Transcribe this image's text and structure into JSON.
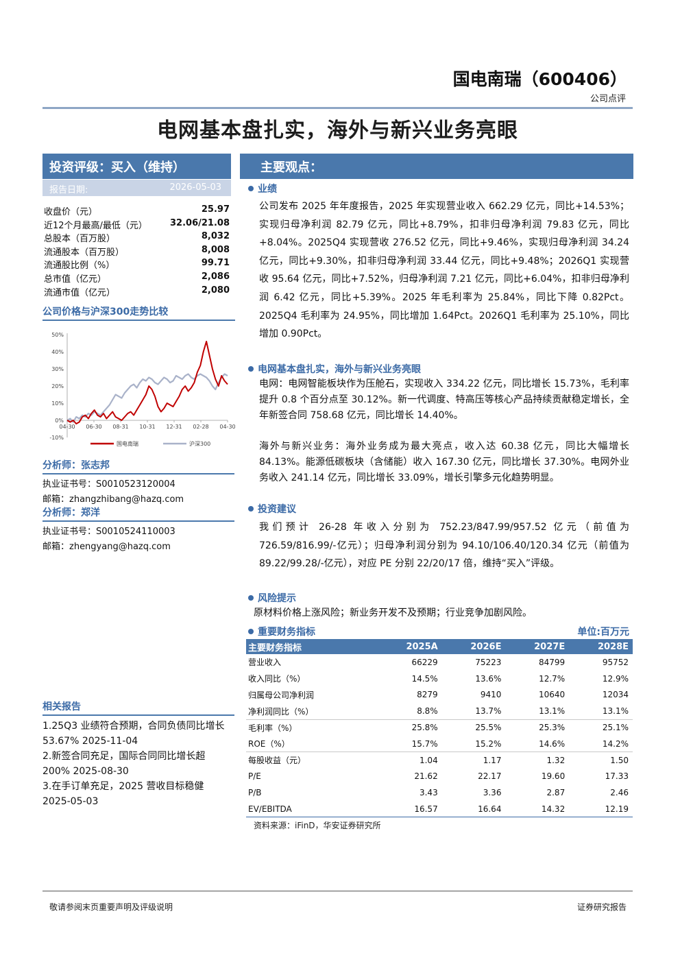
{
  "header": {
    "company": "国电南瑞（600406）",
    "report_type": "公司点评"
  },
  "headline": "电网基本盘扎实，海外与新兴业务亮眼",
  "rating": {
    "title": "投资评级：买入（维持）",
    "date_label": "报告日期:",
    "date_value": "2026-05-03"
  },
  "stats": [
    {
      "label": "收盘价（元）",
      "value": "25.97"
    },
    {
      "label": "近12个月最高/最低（元）",
      "value": "32.06/21.08"
    },
    {
      "label": "总股本（百万股）",
      "value": "8,032"
    },
    {
      "label": "流通股本（百万股）",
      "value": "8,008"
    },
    {
      "label": "流通股比例（%）",
      "value": "99.71"
    },
    {
      "label": "总市值（亿元）",
      "value": "2,086"
    },
    {
      "label": "流通市值（亿元）",
      "value": "2,080"
    }
  ],
  "chart_title": "公司价格与沪深300走势比较",
  "chart_data": {
    "type": "line",
    "y_ticks": [
      "50%",
      "40%",
      "30%",
      "20%",
      "10%",
      "0%",
      "-10%"
    ],
    "ylim": [
      -10,
      50
    ],
    "x_ticks": [
      "04-30",
      "06-30",
      "08-31",
      "10-31",
      "12-31",
      "02-28",
      "04-30"
    ],
    "series": [
      {
        "name": "国电南瑞",
        "color": "#c00000",
        "values": [
          0,
          -1,
          0,
          -2,
          -1,
          2,
          3,
          1,
          4,
          6,
          3,
          2,
          4,
          1,
          3,
          5,
          2,
          1,
          0,
          2,
          4,
          5,
          3,
          6,
          9,
          12,
          15,
          20,
          18,
          14,
          8,
          5,
          7,
          10,
          9,
          8,
          11,
          14,
          18,
          20,
          17,
          19,
          22,
          28,
          32,
          40,
          46,
          38,
          30,
          24,
          20,
          26,
          23,
          21
        ]
      },
      {
        "name": "沪深300",
        "color": "#a9b2c9",
        "values": [
          0,
          1,
          -1,
          2,
          1,
          3,
          2,
          4,
          3,
          5,
          4,
          3,
          5,
          7,
          9,
          12,
          15,
          14,
          13,
          16,
          18,
          20,
          21,
          19,
          22,
          24,
          23,
          25,
          24,
          22,
          21,
          23,
          25,
          24,
          22,
          23,
          26,
          25,
          24,
          26,
          27,
          25,
          24,
          26,
          27,
          26,
          25,
          23,
          20,
          18,
          22,
          25,
          27,
          26
        ]
      }
    ],
    "legend": [
      "国电南瑞",
      "沪深300"
    ]
  },
  "analysts": [
    {
      "title": "分析师：张志邦",
      "cert": "执业证书号：S0010523120004",
      "email": "邮箱：zhangzhibang@hazq.com"
    },
    {
      "title": "分析师：郑洋",
      "cert": "执业证书号：S0010524110003",
      "email": "邮箱：zhengyang@hazq.com"
    }
  ],
  "related": {
    "title": "相关报告",
    "items": [
      "1.25Q3 业绩符合预期，合同负债同比增长 53.67% 2025-11-04",
      "2.新签合同充足，国际合同同比增长超 200% 2025-08-30",
      "3.在手订单充足，2025 营收目标稳健 2025-05-03"
    ]
  },
  "views": {
    "title": "主要观点：",
    "sections": [
      {
        "head": "业绩",
        "paras": [
          "公司发布 2025 年年度报告，2025 年实现营业收入 662.29 亿元，同比+14.53%；实现归母净利润 82.79 亿元，同比+8.79%，扣非归母净利润 79.83 亿元，同比+8.04%。2025Q4 实现营收 276.52 亿元，同比+9.46%，实现归母净利润 34.24 亿元，同比+9.30%，扣非归母净利润 33.44 亿元，同比+9.48%；2026Q1 实现营收 95.64 亿元，同比+7.52%，归母净利润 7.21 亿元，同比+6.04%，扣非归母净利润 6.42 亿元，同比+5.39%。2025 年毛利率为 25.84%，同比下降 0.82Pct。2025Q4 毛利率为 24.95%，同比增加 1.64Pct。2026Q1 毛利率为 25.10%，同比增加 0.90Pct。"
        ]
      },
      {
        "head": "电网基本盘扎实，海外与新兴业务亮眼",
        "paras": [
          "电网：电网智能板块作为压舱石，实现收入 334.22 亿元，同比增长 15.73%，毛利率提升 0.8 个百分点至 30.12%。新一代调度、特高压等核心产品持续贡献稳定增长，全年新签合同 758.68 亿元，同比增长 14.40%。",
          "海外与新兴业务：海外业务成为最大亮点，收入达 60.38 亿元，同比大幅增长 84.13%。能源低碳板块（含储能）收入 167.30 亿元，同比增长 37.30%。电网外业务收入 241.14 亿元，同比增长 33.09%，增长引擎多元化趋势明显。"
        ]
      },
      {
        "head": "投资建议",
        "paras": [
          "我们预计 26-28 年收入分别为 752.23/847.99/957.52 亿元（前值为 726.59/816.99/-亿元）；归母净利润分别为 94.10/106.40/120.34 亿元（前值为 89.22/99.28/-亿元），对应 PE 分别 22/20/17 倍，维持“买入”评级。"
        ]
      },
      {
        "head": "风险提示",
        "paras": [
          "原材料价格上涨风险；新业务开发不及预期；行业竞争加剧风险。"
        ]
      }
    ]
  },
  "fin": {
    "head": "重要财务指标",
    "unit": "单位:百万元",
    "columns": [
      "主要财务指标",
      "2025A",
      "2026E",
      "2027E",
      "2028E"
    ],
    "rows": [
      [
        "营业收入",
        "66229",
        "75223",
        "84799",
        "95752"
      ],
      [
        "收入同比（%）",
        "14.5%",
        "13.6%",
        "12.7%",
        "12.9%"
      ],
      [
        "归属母公司净利润",
        "8279",
        "9410",
        "10640",
        "12034"
      ],
      [
        "净利润同比（%）",
        "8.8%",
        "13.7%",
        "13.1%",
        "13.1%"
      ],
      [
        "毛利率（%）",
        "25.8%",
        "25.5%",
        "25.3%",
        "25.1%"
      ],
      [
        "ROE（%）",
        "15.7%",
        "15.2%",
        "14.6%",
        "14.2%"
      ],
      [
        "每股收益（元）",
        "1.04",
        "1.17",
        "1.32",
        "1.50"
      ],
      [
        "P/E",
        "21.62",
        "22.17",
        "19.60",
        "17.33"
      ],
      [
        "P/B",
        "3.43",
        "3.36",
        "2.87",
        "2.46"
      ],
      [
        "EV/EBITDA",
        "16.57",
        "16.64",
        "14.32",
        "12.19"
      ]
    ],
    "source": "资料来源：iFinD，华安证券研究所"
  },
  "footer": {
    "left": "敬请参阅末页重要声明及评级说明",
    "right": "证券研究报告"
  }
}
